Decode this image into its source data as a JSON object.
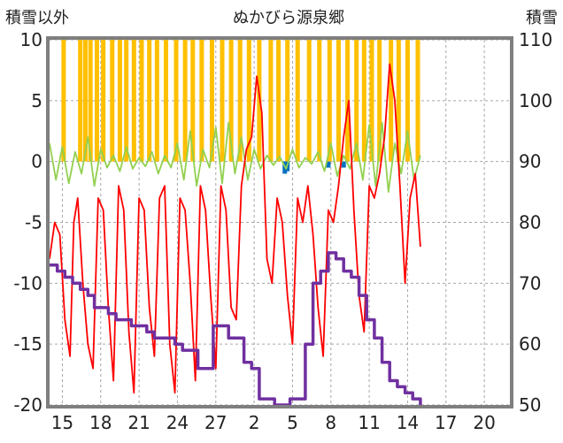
{
  "chart_data": {
    "type": "line",
    "title": "ぬかびら源泉郷",
    "left_axis_label": "積雪以外",
    "right_axis_label": "積雪",
    "left_ylim": [
      -20,
      10
    ],
    "left_yticks": [
      10,
      5,
      0,
      -5,
      -10,
      -15,
      -20
    ],
    "left_ytick_labels": [
      "10",
      "5",
      "0",
      "-5",
      "-10",
      "-15",
      "-20"
    ],
    "right_ylim": [
      50,
      110
    ],
    "right_yticks": [
      110,
      100,
      90,
      80,
      70,
      60,
      50
    ],
    "right_ytick_labels": [
      "110",
      "100",
      "90",
      "80",
      "70",
      "60",
      "50"
    ],
    "x_range": [
      0,
      36
    ],
    "xticks": [
      1,
      4,
      7,
      10,
      13,
      16,
      19,
      22,
      25,
      28,
      31,
      34
    ],
    "xtick_labels": [
      "15",
      "18",
      "21",
      "24",
      "27",
      "2",
      "5",
      "8",
      "11",
      "14",
      "17",
      "20"
    ],
    "grid": true,
    "colors": {
      "frame": "#7f7f7f",
      "grid": "#a6a6a6",
      "temperature": "#ff0000",
      "variation": "#92d050",
      "precip": "#ffc000",
      "precip_alt": "#0070c0",
      "snow_depth": "#7030a0"
    },
    "series": [
      {
        "axis": "left",
        "style": "bars",
        "color": "#ffc000",
        "x": [
          1.1,
          2.4,
          2.8,
          3.2,
          3.7,
          4.2,
          4.9,
          5.5,
          6.0,
          6.6,
          7.2,
          7.8,
          8.4,
          9.1,
          9.9,
          10.6,
          11.2,
          11.9,
          12.7,
          13.5,
          14.2,
          14.9,
          15.6,
          16.4,
          17.3,
          17.9,
          18.6,
          19.4,
          20.3,
          21.1,
          21.9,
          22.6,
          23.3,
          24.0,
          24.6,
          25.2,
          25.8,
          26.7,
          27.3,
          28.0,
          28.8
        ],
        "values": [
          10,
          10,
          10,
          10,
          10,
          10,
          10,
          10,
          10,
          10,
          10,
          10,
          10,
          10,
          10,
          10,
          10,
          10,
          10,
          10,
          10,
          10,
          10,
          10,
          10,
          10,
          10,
          10,
          10,
          10,
          10,
          10,
          10,
          10,
          10,
          10,
          10,
          10,
          10,
          10,
          10
        ]
      },
      {
        "axis": "left",
        "style": "bars",
        "color": "#0070c0",
        "x": [
          18.4,
          18.6,
          21.8,
          23.0
        ],
        "values": [
          -1,
          -0.8,
          -0.5,
          -0.5
        ]
      },
      {
        "axis": "left",
        "style": "line",
        "color": "#92d050",
        "x": [
          0,
          0.5,
          1.0,
          1.5,
          2.0,
          2.5,
          3.0,
          3.5,
          4.0,
          4.5,
          5.0,
          5.5,
          6.0,
          6.5,
          7.0,
          7.5,
          8.0,
          8.5,
          9.0,
          9.5,
          10.0,
          10.5,
          11.0,
          11.5,
          12.0,
          12.5,
          13.0,
          13.5,
          14.0,
          14.5,
          15.0,
          15.5,
          16.0,
          16.5,
          17.0,
          17.5,
          18.0,
          18.5,
          19.0,
          19.5,
          20.0,
          20.5,
          21.0,
          21.5,
          22.0,
          22.5,
          23.0,
          23.5,
          24.0,
          24.5,
          25.0,
          25.5,
          26.0,
          26.5,
          27.0,
          27.5,
          28.0,
          28.5,
          29.0
        ],
        "values": [
          1.5,
          -1.5,
          1.2,
          -1.8,
          0.8,
          -1.0,
          2.0,
          -2.0,
          1.0,
          -0.5,
          0.5,
          -0.8,
          1.2,
          -0.6,
          0.3,
          -0.4,
          0.8,
          -1.0,
          0.5,
          -0.5,
          1.5,
          -1.5,
          2.5,
          -2.0,
          1.0,
          -0.5,
          2.8,
          -1.8,
          3.2,
          -1.0,
          2.0,
          -1.5,
          1.0,
          -0.6,
          0.5,
          -0.3,
          0.4,
          -0.6,
          1.0,
          -0.5,
          0.3,
          -0.2,
          0.8,
          -0.8,
          1.5,
          -1.2,
          0.5,
          -0.6,
          1.5,
          -1.5,
          3.0,
          -2.0,
          3.2,
          -2.5,
          1.5,
          -1.0,
          2.5,
          -1.5,
          0.5
        ]
      },
      {
        "axis": "left",
        "style": "line",
        "color": "#ff0000",
        "x": [
          0,
          0.4,
          0.8,
          1.2,
          1.6,
          1.9,
          2.2,
          2.6,
          3.0,
          3.4,
          3.8,
          4.2,
          4.6,
          5.0,
          5.4,
          5.8,
          6.2,
          6.6,
          7.0,
          7.4,
          7.8,
          8.2,
          8.6,
          9.0,
          9.4,
          9.8,
          10.2,
          10.6,
          11.0,
          11.4,
          11.8,
          12.2,
          12.6,
          13.0,
          13.4,
          13.8,
          14.2,
          14.6,
          15.0,
          15.4,
          15.8,
          16.2,
          16.6,
          17.0,
          17.4,
          17.8,
          18.2,
          18.6,
          19.0,
          19.4,
          19.8,
          20.2,
          20.6,
          21.0,
          21.4,
          21.8,
          22.2,
          22.6,
          23.0,
          23.4,
          23.8,
          24.2,
          24.6,
          25.0,
          25.4,
          25.8,
          26.2,
          26.6,
          27.0,
          27.4,
          27.8,
          28.2,
          28.6,
          29.0
        ],
        "values": [
          -8,
          -5,
          -6,
          -13,
          -16,
          -5,
          -3,
          -10,
          -15,
          -17,
          -3,
          -4,
          -12,
          -18,
          -2,
          -4,
          -14,
          -19,
          -3,
          -4,
          -12,
          -16,
          -3,
          -2,
          -15,
          -19,
          -3,
          -4,
          -10,
          -18,
          -2,
          -4,
          -11,
          -17,
          -2,
          -4,
          -12,
          -13,
          -2,
          1,
          2,
          7,
          4,
          -8,
          -10,
          -3,
          -5,
          -11,
          -15,
          -3,
          -5,
          -2,
          -6,
          -12,
          -16,
          -4,
          -5,
          -2,
          2,
          5,
          -4,
          -11,
          -14,
          -2,
          -3,
          -1,
          2,
          8,
          5,
          -2,
          -10,
          -3,
          -1,
          -7
        ]
      },
      {
        "axis": "right",
        "style": "step",
        "color": "#7030a0",
        "x": [
          0,
          0.6,
          1.2,
          1.8,
          2.4,
          3.0,
          3.5,
          4.0,
          4.6,
          5.2,
          5.8,
          6.4,
          7.0,
          7.6,
          8.2,
          8.8,
          9.3,
          9.8,
          10.4,
          11.0,
          11.6,
          12.2,
          12.8,
          13.4,
          14.0,
          14.6,
          15.2,
          15.8,
          16.4,
          17.0,
          17.6,
          18.2,
          18.8,
          19.4,
          20.0,
          20.6,
          21.2,
          21.8,
          22.4,
          23.0,
          23.6,
          24.2,
          24.8,
          25.4,
          26.0,
          26.6,
          27.2,
          27.8,
          28.4,
          29.0
        ],
        "values": [
          73,
          72,
          71,
          70,
          69,
          68,
          66,
          66,
          65,
          64,
          64,
          63,
          63,
          62,
          61,
          61,
          61,
          60,
          59,
          59,
          56,
          56,
          63,
          63,
          61,
          61,
          57,
          56,
          51,
          51,
          50,
          50,
          51,
          51,
          60,
          70,
          72,
          75,
          74,
          72,
          71,
          68,
          64,
          61,
          57,
          54,
          53,
          52,
          51,
          50
        ]
      }
    ]
  }
}
